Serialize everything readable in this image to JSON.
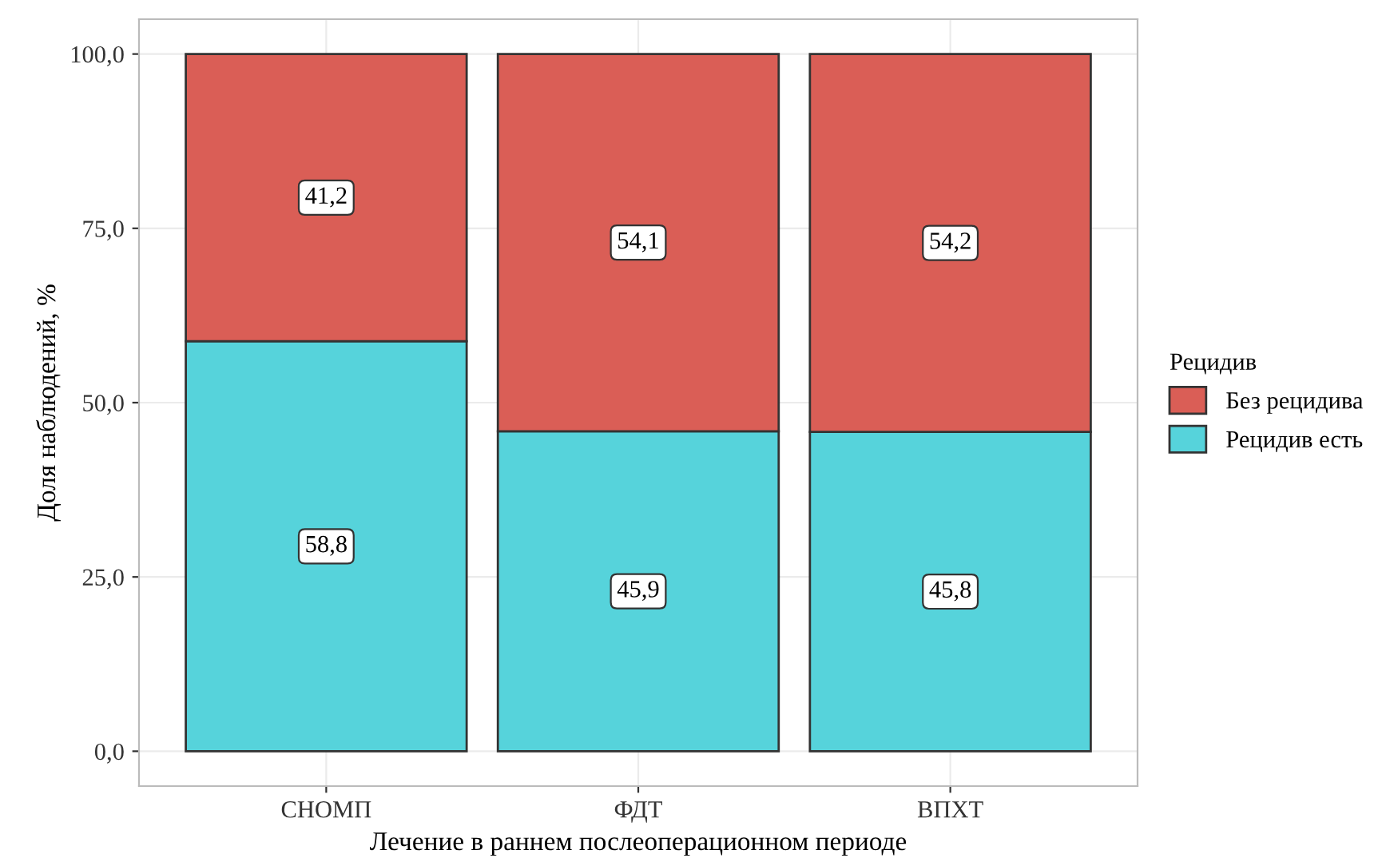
{
  "chart_data": {
    "type": "bar",
    "stacked": true,
    "xlabel": "Лечение в раннем послеоперационном периоде",
    "ylabel": "Доля наблюдений, %",
    "legend_title": "Рецидив",
    "legend": "right",
    "grid": true,
    "categories": [
      "СНОМП",
      "ФДТ",
      "ВПХТ"
    ],
    "series": [
      {
        "name": "Рецидив есть",
        "color": "#56d3db",
        "values": [
          58.8,
          45.9,
          45.8
        ],
        "value_labels": [
          "58,8",
          "45,9",
          "45,8"
        ]
      },
      {
        "name": "Без рецидива",
        "color": "#da5e56",
        "values": [
          41.2,
          54.1,
          54.2
        ],
        "value_labels": [
          "41,2",
          "54,1",
          "54,2"
        ]
      }
    ],
    "ylim": [
      -5,
      105
    ],
    "yticks": [
      {
        "value": 0,
        "label": "0,0"
      },
      {
        "value": 25,
        "label": "25,0"
      },
      {
        "value": 50,
        "label": "50,0"
      },
      {
        "value": 75,
        "label": "75,0"
      },
      {
        "value": 100,
        "label": "100,0"
      }
    ]
  }
}
